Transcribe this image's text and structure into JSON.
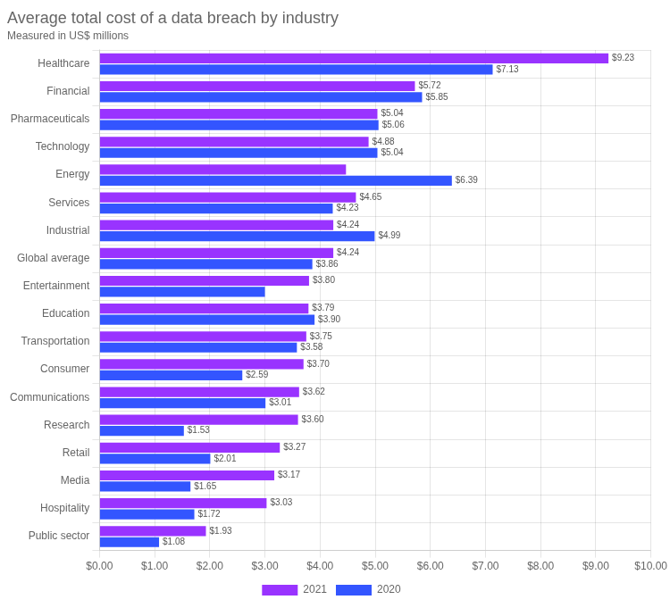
{
  "chart_data": {
    "type": "bar",
    "orientation": "horizontal",
    "title": "Average total cost of a data breach by industry",
    "subtitle": "Measured in US$ millions",
    "categories": [
      "Healthcare",
      "Financial",
      "Pharmaceuticals",
      "Technology",
      "Energy",
      "Services",
      "Industrial",
      "Global average",
      "Entertainment",
      "Education",
      "Transportation",
      "Consumer",
      "Communications",
      "Research",
      "Retail",
      "Media",
      "Hospitality",
      "Public sector"
    ],
    "series": [
      {
        "name": "2021",
        "color": "#9933ff",
        "values": [
          9.23,
          5.72,
          5.04,
          4.88,
          4.47,
          4.65,
          4.24,
          4.24,
          3.8,
          3.79,
          3.75,
          3.7,
          3.62,
          3.6,
          3.27,
          3.17,
          3.03,
          1.93
        ],
        "value_labels": [
          "$9.23",
          "$5.72",
          "$5.04",
          "$4.88",
          null,
          "$4.65",
          "$4.24",
          "$4.24",
          "$3.80",
          "$3.79",
          "$3.75",
          "$3.70",
          "$3.62",
          "$3.60",
          "$3.27",
          "$3.17",
          "$3.03",
          "$1.93"
        ]
      },
      {
        "name": "2020",
        "color": "#3355ff",
        "values": [
          7.13,
          5.85,
          5.06,
          5.04,
          6.39,
          4.23,
          4.99,
          3.86,
          3.0,
          3.9,
          3.58,
          2.59,
          3.01,
          1.53,
          2.01,
          1.65,
          1.72,
          1.08
        ],
        "value_labels": [
          "$7.13",
          "$5.85",
          "$5.06",
          "$5.04",
          "$6.39",
          "$4.23",
          "$4.99",
          "$3.86",
          null,
          "$3.90",
          "$3.58",
          "$2.59",
          "$3.01",
          "$1.53",
          "$2.01",
          "$1.65",
          "$1.72",
          "$1.08"
        ]
      }
    ],
    "xlim": [
      0,
      10
    ],
    "xticks": [
      {
        "value": 0,
        "label": "$0.00"
      },
      {
        "value": 1,
        "label": "$1.00"
      },
      {
        "value": 2,
        "label": "$2.00"
      },
      {
        "value": 3,
        "label": "$3.00"
      },
      {
        "value": 4,
        "label": "$4.00"
      },
      {
        "value": 5,
        "label": "$5.00"
      },
      {
        "value": 6,
        "label": "$6.00"
      },
      {
        "value": 7,
        "label": "$7.00"
      },
      {
        "value": 8,
        "label": "$8.00"
      },
      {
        "value": 9,
        "label": "$9.00"
      },
      {
        "value": 10,
        "label": "$10.00"
      }
    ],
    "grid": true,
    "legend": "bottom",
    "data_labels": true
  }
}
